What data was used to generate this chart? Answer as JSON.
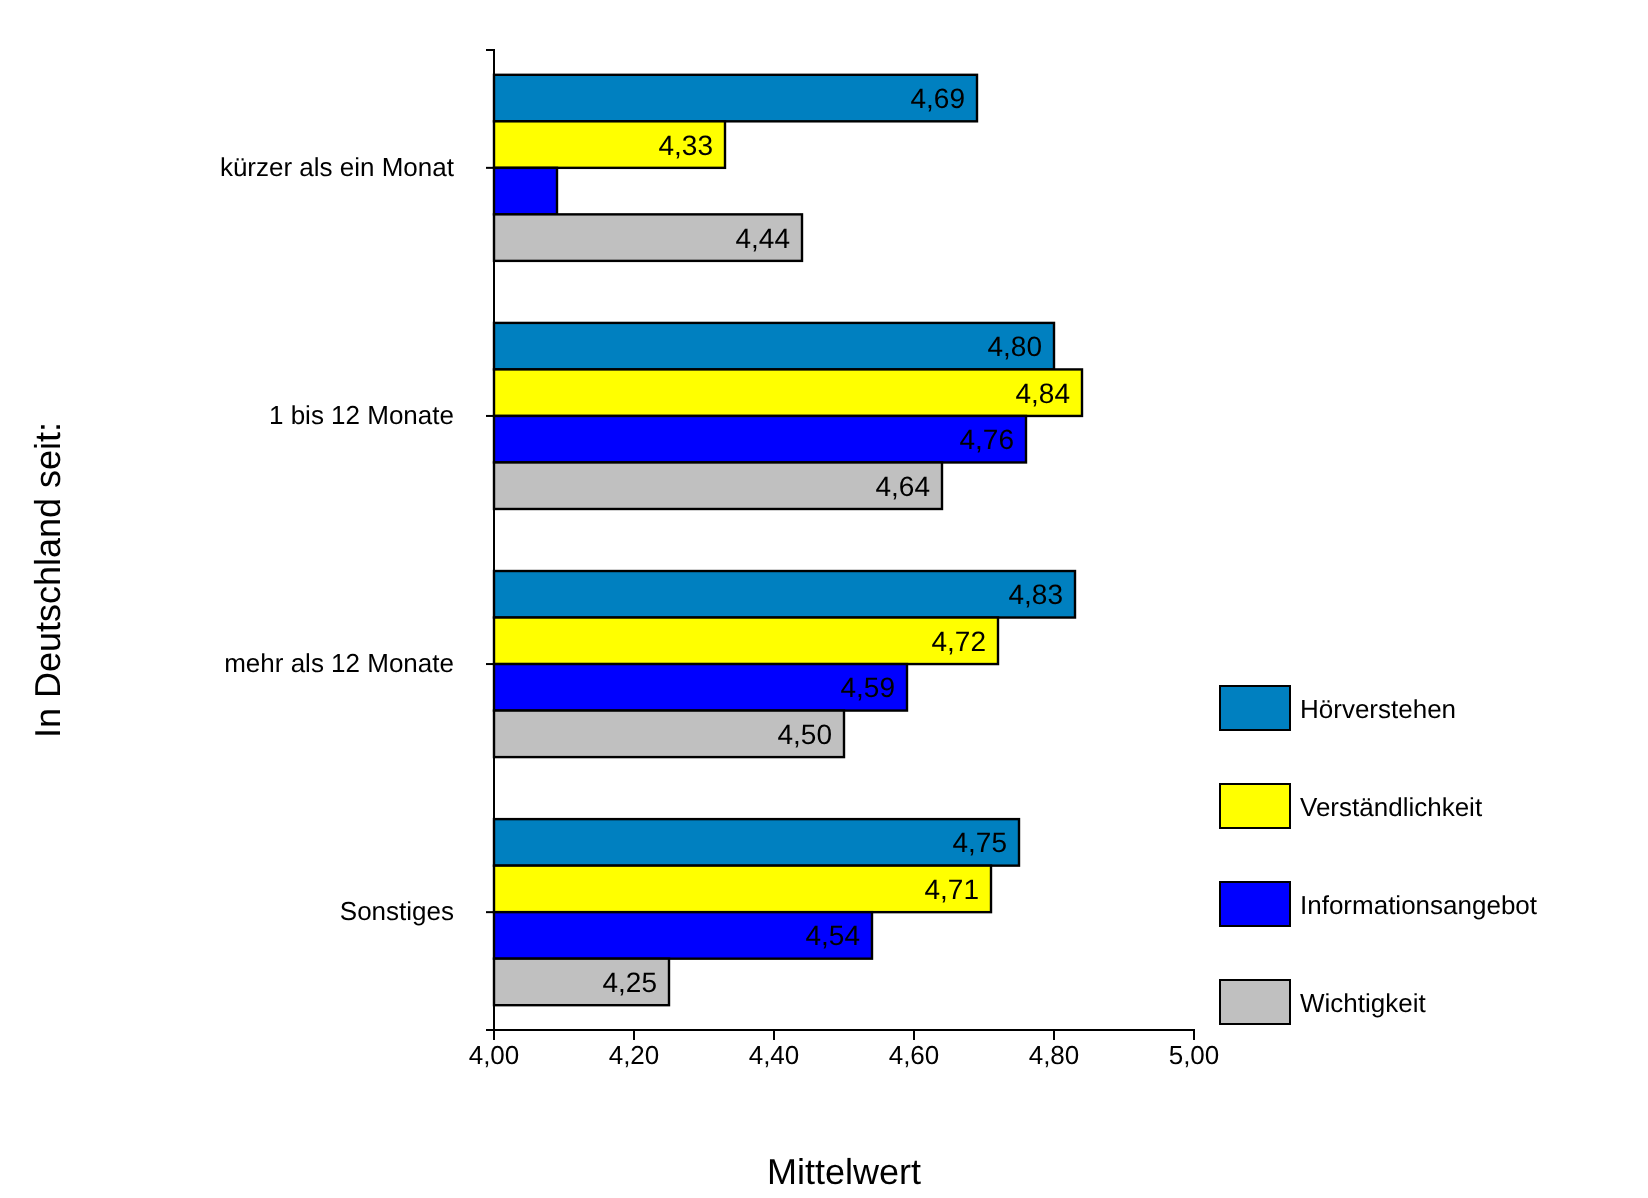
{
  "chart_data": {
    "type": "bar",
    "orientation": "horizontal",
    "xlabel": "Mittelwert",
    "ylabel": "In Deutschland seit:",
    "categories": [
      "kürzer als ein Monat",
      "1 bis 12 Monate",
      "mehr als 12 Monate",
      "Sonstiges"
    ],
    "series": [
      {
        "name": "Hörverstehen",
        "color": "#0080c0",
        "values": [
          4.69,
          4.8,
          4.83,
          4.75
        ],
        "value_labels": [
          "4,69",
          "4,80",
          "4,83",
          "4,75"
        ]
      },
      {
        "name": "Verständlichkeit",
        "color": "#ffff00",
        "values": [
          4.33,
          4.84,
          4.72,
          4.71
        ],
        "value_labels": [
          "4,33",
          "4,84",
          "4,72",
          "4,71"
        ]
      },
      {
        "name": "Informationsangebot",
        "color": "#0000ff",
        "values": [
          4.09,
          4.76,
          4.59,
          4.54
        ],
        "value_labels": [
          null,
          "4,76",
          "4,59",
          "4,54"
        ]
      },
      {
        "name": "Wichtigkeit",
        "color": "#c0c0c0",
        "values": [
          4.44,
          4.64,
          4.5,
          4.25
        ],
        "value_labels": [
          "4,44",
          "4,64",
          "4,50",
          "4,25"
        ]
      }
    ],
    "xlim": [
      4,
      5
    ],
    "xticks": [
      {
        "value": 4,
        "label": "4,00"
      },
      {
        "value": 4.2,
        "label": "4,20"
      },
      {
        "value": 4.4,
        "label": "4,40"
      },
      {
        "value": 4.6,
        "label": "4,60"
      },
      {
        "value": 4.8,
        "label": "4,80"
      },
      {
        "value": 5,
        "label": "5,00"
      }
    ],
    "legend": "bottom right",
    "grid": false
  }
}
